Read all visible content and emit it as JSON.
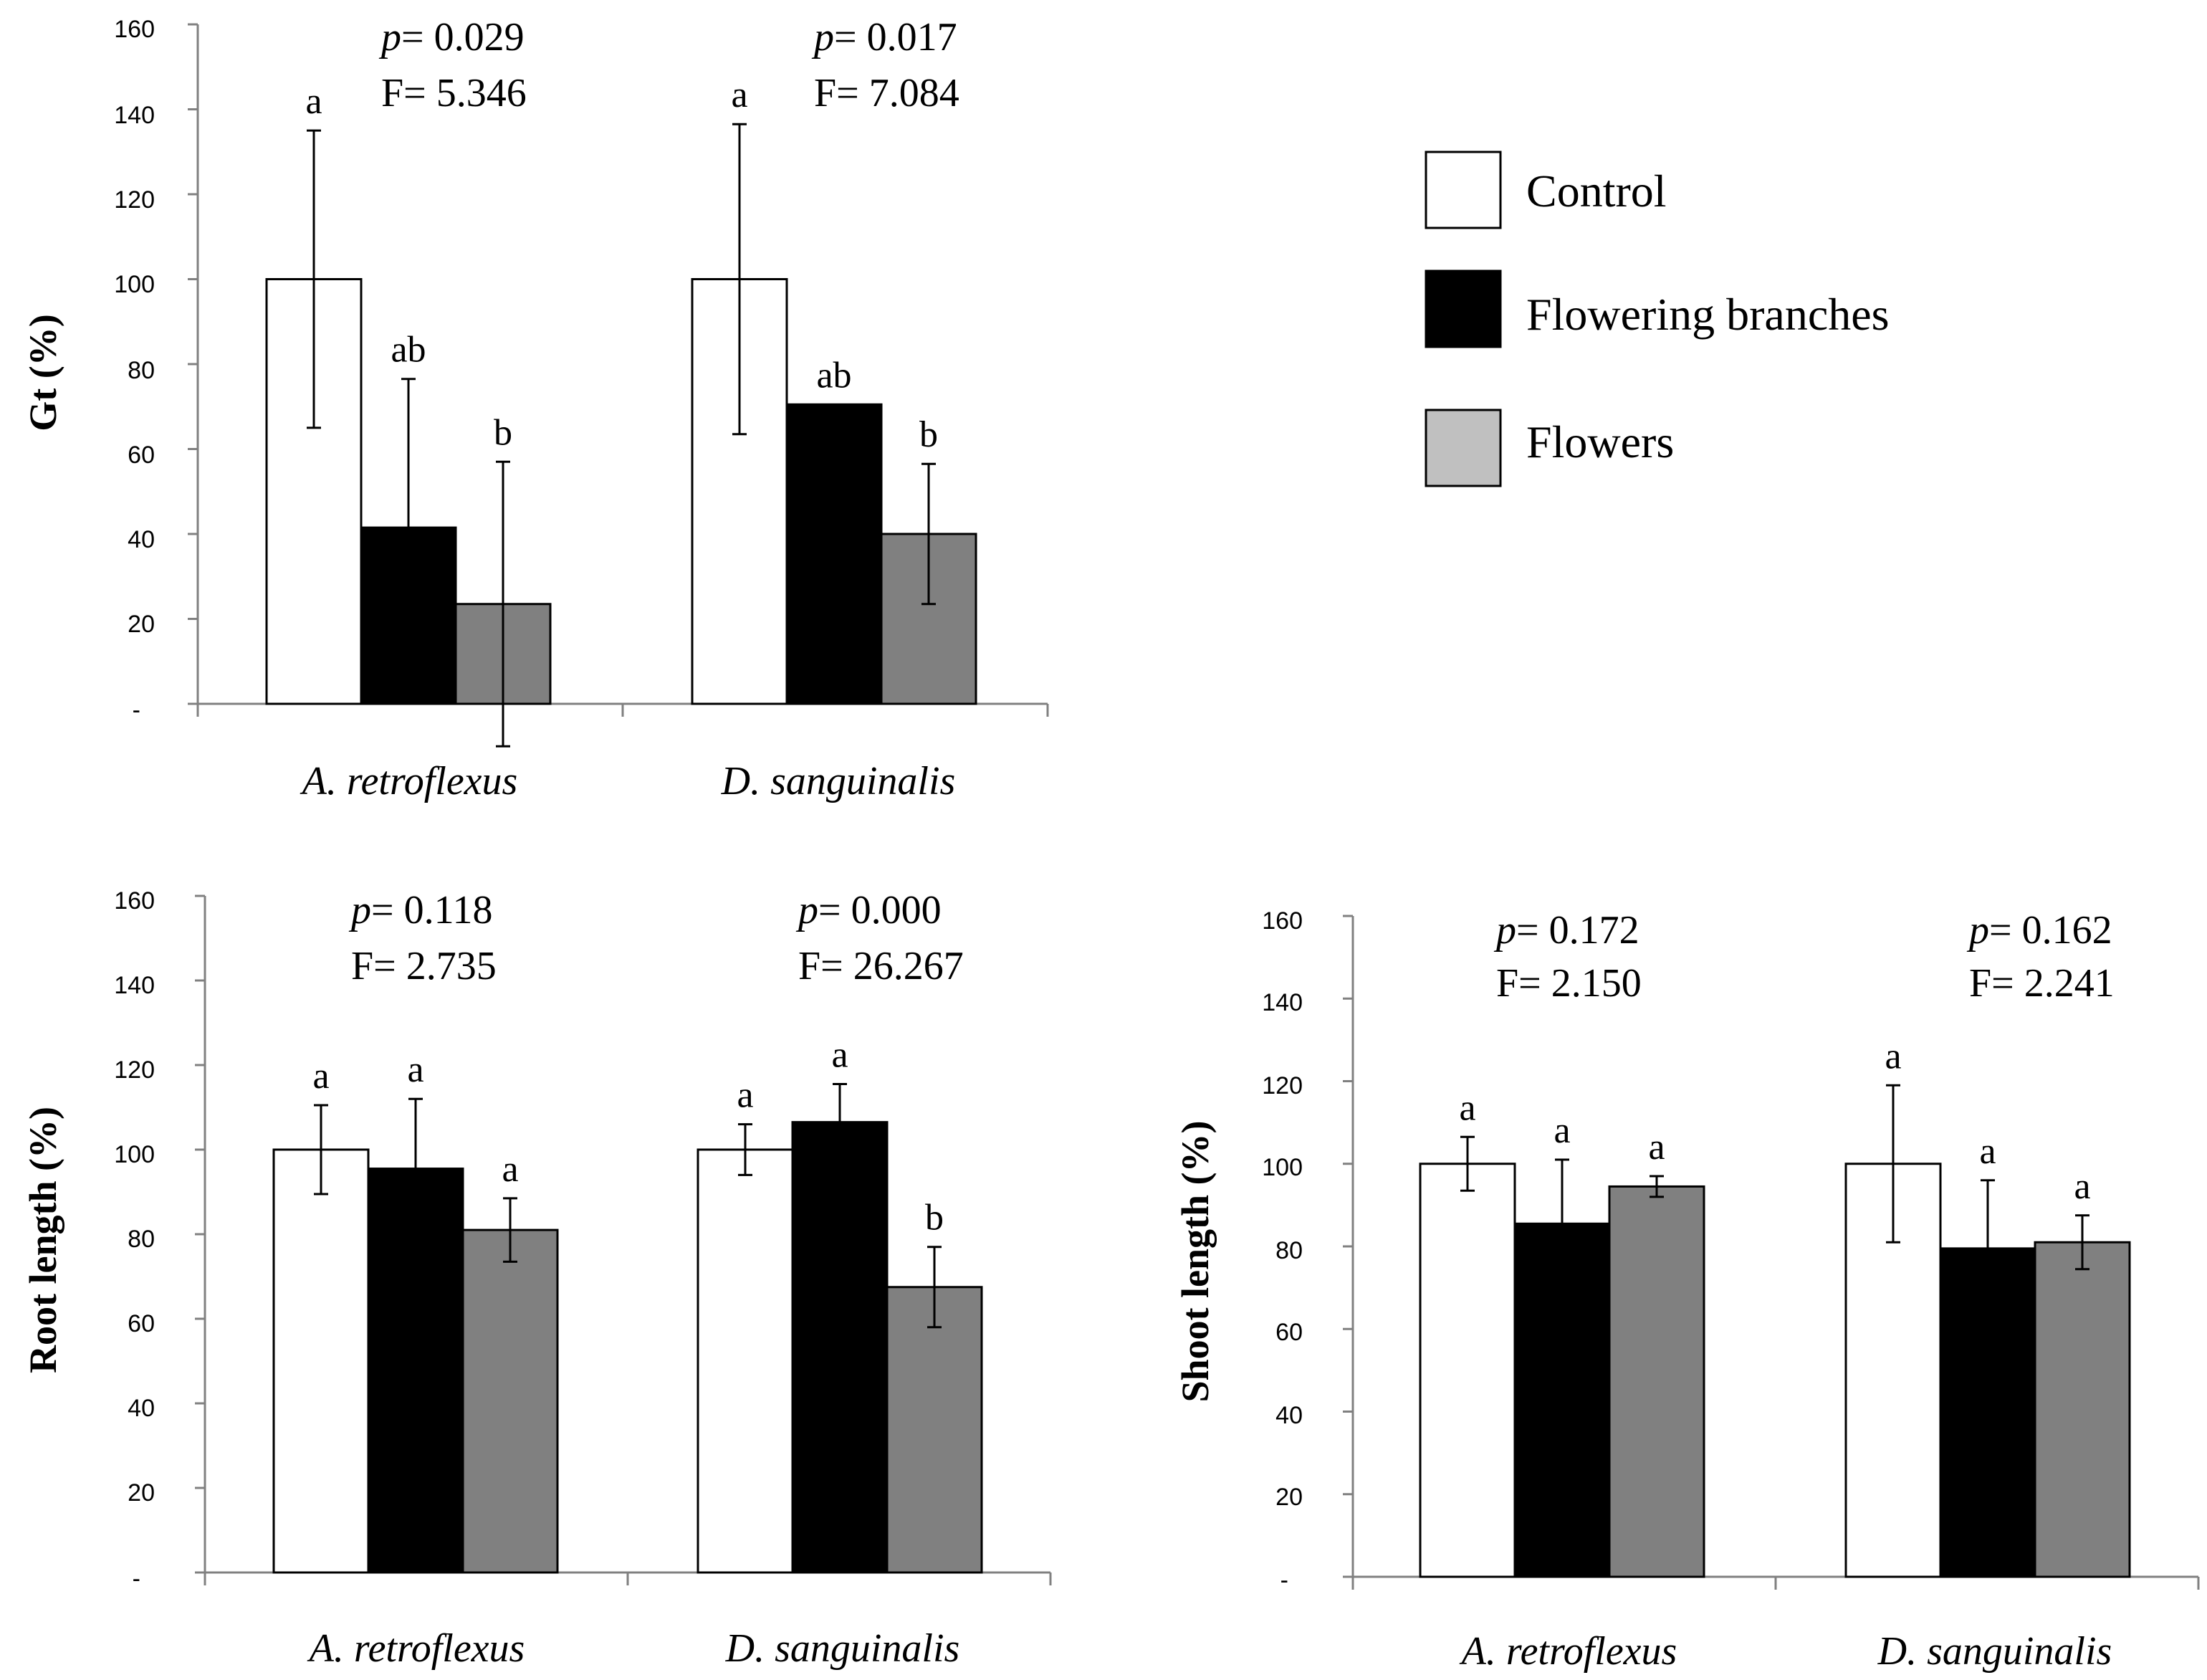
{
  "colors": {
    "control": "#ffffff",
    "flowering_branches": "#000000",
    "flowers": "#808080",
    "flowers_legend": "#c0c0c0",
    "axis": "#808080",
    "outline": "#000000"
  },
  "legend": {
    "items": [
      {
        "label": "Control",
        "color": "#ffffff"
      },
      {
        "label": "Flowering branches",
        "color": "#000000"
      },
      {
        "label": "Flowers",
        "color": "#c0c0c0"
      }
    ]
  },
  "chart_data": [
    {
      "type": "bar",
      "id": "gt",
      "ylabel": "Gt (%)",
      "ylim": [
        0,
        160
      ],
      "yticks": [
        "-",
        "20",
        "40",
        "60",
        "80",
        "100",
        "120",
        "140",
        "160"
      ],
      "categories": [
        "A. retroflexus",
        "D. sanguinalis"
      ],
      "series": [
        {
          "name": "Control",
          "values": [
            100,
            100
          ],
          "errors": [
            35,
            36.5
          ],
          "letters": [
            "a",
            "a"
          ]
        },
        {
          "name": "Flowering branches",
          "values": [
            41.5,
            70.5
          ],
          "errors": [
            35,
            0
          ],
          "letters": [
            "ab",
            "ab"
          ]
        },
        {
          "name": "Flowers",
          "values": [
            23.5,
            40
          ],
          "errors": [
            33.5,
            16.5
          ],
          "letters": [
            "b",
            "b"
          ]
        }
      ],
      "stats": [
        {
          "p": "p",
          "p_value": "= 0.029",
          "f": "F= 5.346"
        },
        {
          "p": "p",
          "p_value": "= 0.017",
          "f": "F= 7.084"
        }
      ]
    },
    {
      "type": "bar",
      "id": "root",
      "ylabel": "Root length (%)",
      "ylim": [
        0,
        160
      ],
      "yticks": [
        "-",
        "20",
        "40",
        "60",
        "80",
        "100",
        "120",
        "140",
        "160"
      ],
      "categories": [
        "A. retroflexus",
        "D. sanguinalis"
      ],
      "series": [
        {
          "name": "Control",
          "values": [
            100,
            100
          ],
          "errors": [
            10.5,
            6
          ],
          "letters": [
            "a",
            "a"
          ]
        },
        {
          "name": "Flowering branches",
          "values": [
            95.5,
            106.5
          ],
          "errors": [
            16.5,
            9
          ],
          "letters": [
            "a",
            "a"
          ]
        },
        {
          "name": "Flowers",
          "values": [
            81,
            67.5
          ],
          "errors": [
            7.5,
            9.5
          ],
          "letters": [
            "a",
            "b"
          ]
        }
      ],
      "stats": [
        {
          "p": "p",
          "p_value": "= 0.118",
          "f": "F= 2.735"
        },
        {
          "p": "p",
          "p_value": "= 0.000",
          "f": "F= 26.267"
        }
      ]
    },
    {
      "type": "bar",
      "id": "shoot",
      "ylabel": "Shoot length (%)",
      "ylim": [
        0,
        160
      ],
      "yticks": [
        "-",
        "20",
        "40",
        "60",
        "80",
        "100",
        "120",
        "140",
        "160"
      ],
      "categories": [
        "A. retroflexus",
        "D. sanguinalis"
      ],
      "series": [
        {
          "name": "Control",
          "values": [
            100,
            100
          ],
          "errors": [
            6.5,
            19
          ],
          "letters": [
            "a",
            "a"
          ]
        },
        {
          "name": "Flowering branches",
          "values": [
            85.5,
            79.5
          ],
          "errors": [
            15.5,
            16.5
          ],
          "letters": [
            "a",
            "a"
          ]
        },
        {
          "name": "Flowers",
          "values": [
            94.5,
            81
          ],
          "errors": [
            2.5,
            6.5
          ],
          "letters": [
            "a",
            "a"
          ]
        }
      ],
      "stats": [
        {
          "p": "p",
          "p_value": "= 0.172",
          "f": "F= 2.150"
        },
        {
          "p": "p",
          "p_value": "= 0.162",
          "f": "F= 2.241"
        }
      ]
    }
  ]
}
